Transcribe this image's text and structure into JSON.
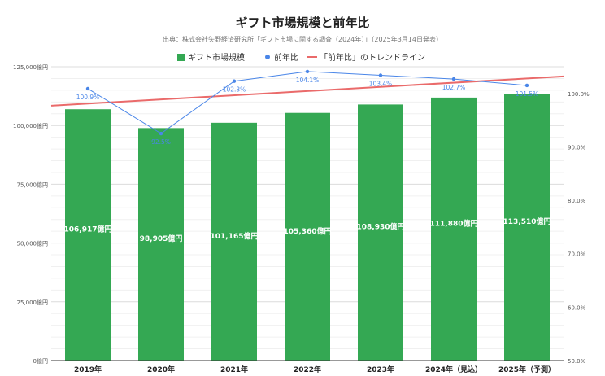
{
  "chart_data": {
    "type": "bar",
    "title": "ギフト市場規模と前年比",
    "subtitle": "出典：株式会社矢野経済研究所「ギフト市場に関する調査（2024年）」（2025年3月14日発表）",
    "categories": [
      "2019年",
      "2020年",
      "2021年",
      "2022年",
      "2023年",
      "2024年（見込）",
      "2025年（予測）"
    ],
    "series": [
      {
        "name": "ギフト市場規模",
        "type": "bar",
        "axis": "left",
        "values": [
          106917,
          98905,
          101165,
          105360,
          108930,
          111880,
          113510
        ],
        "labels": [
          "106,917億円",
          "98,905億円",
          "101,165億円",
          "105,360億円",
          "108,930億円",
          "111,880億円",
          "113,510億円"
        ]
      },
      {
        "name": "前年比",
        "type": "line",
        "axis": "right",
        "values": [
          100.9,
          92.5,
          102.3,
          104.1,
          103.4,
          102.7,
          101.5
        ],
        "labels": [
          "100.9%",
          "92.5%",
          "102.3%",
          "104.1%",
          "103.4%",
          "102.7%",
          "101.5%"
        ]
      },
      {
        "name": "「前年比」のトレンドライン",
        "type": "trendline",
        "axis": "right",
        "values": [
          98.1,
          98.9,
          99.7,
          100.5,
          101.3,
          102.0,
          102.8
        ]
      }
    ],
    "y_left": {
      "range": [
        0,
        125000
      ],
      "ticks": [
        0,
        25000,
        50000,
        75000,
        100000,
        125000
      ],
      "tick_labels": [
        "0億円",
        "25,000億円",
        "50,000億円",
        "75,000億円",
        "100,000億円",
        "125,000億円"
      ]
    },
    "y_right": {
      "range": [
        50,
        105
      ],
      "ticks": [
        50,
        60,
        70,
        80,
        90,
        100
      ],
      "tick_labels": [
        "50.0%",
        "60.0%",
        "70.0%",
        "80.0%",
        "90.0%",
        "100.0%"
      ]
    },
    "legend": "top-center",
    "grid": true,
    "colors": {
      "bar": "#34a853",
      "line": "#4a86e8",
      "trend": "#ea6a6a",
      "grid": "#e6e6e6",
      "title": "#222222",
      "subtitle": "#777777",
      "axis_text": "#555555",
      "bar_label": "#ffffff",
      "line_label": "#4a86e8"
    }
  }
}
